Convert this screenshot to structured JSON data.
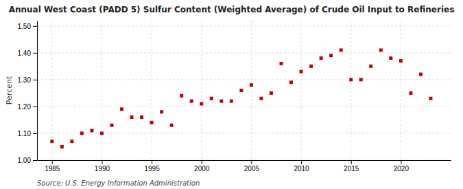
{
  "chart_data": {
    "type": "scatter",
    "title": "Annual West Coast (PADD 5) Sulfur Content (Weighted Average) of Crude Oil Input to Refineries",
    "ylabel": "Percent",
    "source": "Source: U.S. Energy Information Administration",
    "color": "#c0000a",
    "marker": "square",
    "grid": true,
    "xlim": [
      1983.5,
      2025
    ],
    "ylim": [
      1.0,
      1.52
    ],
    "xticks": [
      1985,
      1990,
      1995,
      2000,
      2005,
      2010,
      2015,
      2020
    ],
    "yticks": [
      {
        "value": 1.0,
        "label": "1.00"
      },
      {
        "value": 1.1,
        "label": "1.10"
      },
      {
        "value": 1.2,
        "label": "1.20"
      },
      {
        "value": 1.3,
        "label": "1.30"
      },
      {
        "value": 1.4,
        "label": "1.40"
      },
      {
        "value": 1.5,
        "label": "1.50"
      }
    ],
    "x": [
      1985,
      1986,
      1987,
      1988,
      1989,
      1990,
      1991,
      1992,
      1993,
      1994,
      1995,
      1996,
      1997,
      1998,
      1999,
      2000,
      2001,
      2002,
      2003,
      2004,
      2005,
      2006,
      2007,
      2008,
      2009,
      2010,
      2011,
      2012,
      2013,
      2014,
      2015,
      2016,
      2017,
      2018,
      2019,
      2020,
      2021,
      2022,
      2023
    ],
    "values": [
      1.07,
      1.05,
      1.07,
      1.1,
      1.11,
      1.1,
      1.13,
      1.19,
      1.16,
      1.16,
      1.14,
      1.18,
      1.13,
      1.24,
      1.22,
      1.21,
      1.23,
      1.22,
      1.22,
      1.26,
      1.28,
      1.23,
      1.25,
      1.36,
      1.29,
      1.33,
      1.35,
      1.38,
      1.39,
      1.41,
      1.3,
      1.3,
      1.35,
      1.41,
      1.38,
      1.37,
      1.25,
      1.32,
      1.23
    ]
  }
}
